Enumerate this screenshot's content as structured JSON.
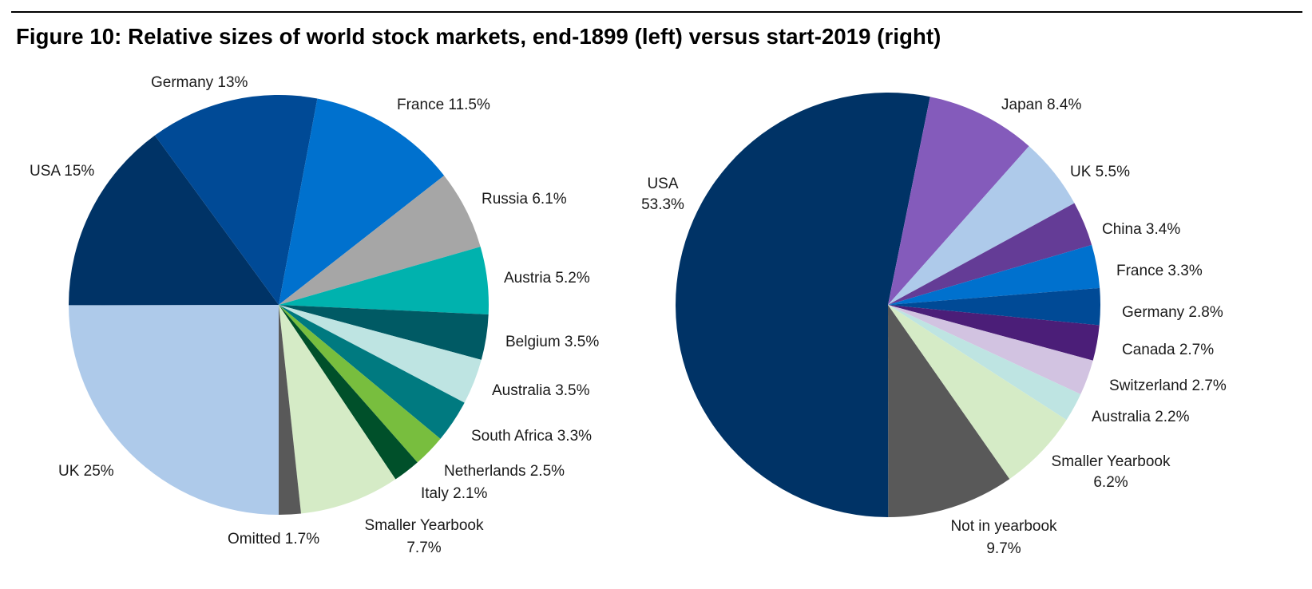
{
  "title": "Figure 10: Relative sizes of world stock markets, end-1899 (left) versus start-2019 (right)",
  "chart_data": [
    {
      "type": "pie",
      "title": "",
      "slices": [
        {
          "label": "UK",
          "value": 25,
          "display": "UK 25%",
          "color": "#aecaea"
        },
        {
          "label": "USA",
          "value": 15,
          "display": "USA 15%",
          "color": "#003366"
        },
        {
          "label": "Germany",
          "value": 13,
          "display": "Germany 13%",
          "color": "#004a96"
        },
        {
          "label": "France",
          "value": 11.5,
          "display": "France 11.5%",
          "color": "#0071ce"
        },
        {
          "label": "Russia",
          "value": 6.1,
          "display": "Russia 6.1%",
          "color": "#a6a6a6"
        },
        {
          "label": "Austria",
          "value": 5.2,
          "display": "Austria 5.2%",
          "color": "#00b2ae"
        },
        {
          "label": "Belgium",
          "value": 3.5,
          "display": "Belgium 3.5%",
          "color": "#005a64"
        },
        {
          "label": "Australia",
          "value": 3.5,
          "display": "Australia 3.5%",
          "color": "#bee4e2"
        },
        {
          "label": "South Africa",
          "value": 3.3,
          "display": "South Africa 3.3%",
          "color": "#007a80"
        },
        {
          "label": "Netherlands",
          "value": 2.5,
          "display": "Netherlands 2.5%",
          "color": "#78be3e"
        },
        {
          "label": "Italy",
          "value": 2.1,
          "display": "Italy 2.1%",
          "color": "#00502a"
        },
        {
          "label": "Smaller Yearbook",
          "value": 7.7,
          "display": "Smaller Yearbook 7.7%",
          "color": "#d5ebc6"
        },
        {
          "label": "Omitted",
          "value": 1.7,
          "display": "Omitted 1.7%",
          "color": "#595959"
        }
      ]
    },
    {
      "type": "pie",
      "title": "",
      "slices": [
        {
          "label": "Not in yearbook",
          "value": 9.7,
          "display": "Not in yearbook 9.7%",
          "color": "#595959"
        },
        {
          "label": "USA",
          "value": 53.3,
          "display": "USA 53.3%",
          "color": "#003366"
        },
        {
          "label": "Japan",
          "value": 8.4,
          "display": "Japan 8.4%",
          "color": "#845bbb"
        },
        {
          "label": "UK",
          "value": 5.5,
          "display": "UK 5.5%",
          "color": "#aecaea"
        },
        {
          "label": "China",
          "value": 3.4,
          "display": "China 3.4%",
          "color": "#643c96"
        },
        {
          "label": "France",
          "value": 3.3,
          "display": "France 3.3%",
          "color": "#0071ce"
        },
        {
          "label": "Germany",
          "value": 2.8,
          "display": "Germany 2.8%",
          "color": "#004a96"
        },
        {
          "label": "Canada",
          "value": 2.7,
          "display": "Canada 2.7%",
          "color": "#4b1e78"
        },
        {
          "label": "Switzerland",
          "value": 2.7,
          "display": "Switzerland 2.7%",
          "color": "#d2c3e1"
        },
        {
          "label": "Australia",
          "value": 2.2,
          "display": "Australia 2.2%",
          "color": "#bee4e2"
        },
        {
          "label": "Smaller Yearbook",
          "value": 6.2,
          "display": "Smaller Yearbook 6.2%",
          "color": "#d5ebc6"
        }
      ]
    }
  ]
}
